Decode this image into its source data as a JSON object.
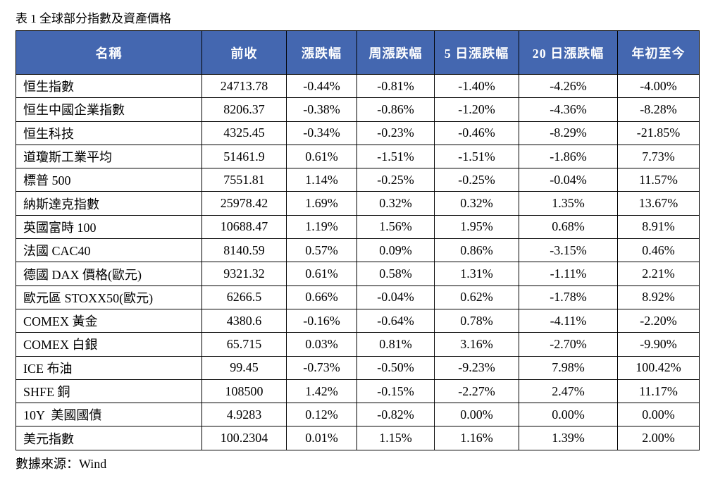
{
  "title": "表 1 全球部分指數及資產價格",
  "table": {
    "header": [
      "名稱",
      "前收",
      "漲跌幅",
      "周漲跌幅",
      "5 日漲跌幅",
      "20 日漲跌幅",
      "年初至今"
    ],
    "rows": [
      [
        "恒生指數",
        "24713.78",
        "-0.44%",
        "-0.81%",
        "-1.40%",
        "-4.26%",
        "-4.00%"
      ],
      [
        "恒生中國企業指數",
        "8206.37",
        "-0.38%",
        "-0.86%",
        "-1.20%",
        "-4.36%",
        "-8.28%"
      ],
      [
        "恒生科技",
        "4325.45",
        "-0.34%",
        "-0.23%",
        "-0.46%",
        "-8.29%",
        "-21.85%"
      ],
      [
        "道瓊斯工業平均",
        "51461.9",
        "0.61%",
        "-1.51%",
        "-1.51%",
        "-1.86%",
        "7.73%"
      ],
      [
        "標普 500",
        "7551.81",
        "1.14%",
        "-0.25%",
        "-0.25%",
        "-0.04%",
        "11.57%"
      ],
      [
        "納斯達克指數",
        "25978.42",
        "1.69%",
        "0.32%",
        "0.32%",
        "1.35%",
        "13.67%"
      ],
      [
        "英國富時 100",
        "10688.47",
        "1.19%",
        "1.56%",
        "1.95%",
        "0.68%",
        "8.91%"
      ],
      [
        "法國 CAC40",
        "8140.59",
        "0.57%",
        "0.09%",
        "0.86%",
        "-3.15%",
        "0.46%"
      ],
      [
        "德國 DAX 價格(歐元)",
        "9321.32",
        "0.61%",
        "0.58%",
        "1.31%",
        "-1.11%",
        "2.21%"
      ],
      [
        "歐元區 STOXX50(歐元)",
        "6266.5",
        "0.66%",
        "-0.04%",
        "0.62%",
        "-1.78%",
        "8.92%"
      ],
      [
        "COMEX 黃金",
        "4380.6",
        "-0.16%",
        "-0.64%",
        "0.78%",
        "-4.11%",
        "-2.20%"
      ],
      [
        "COMEX 白銀",
        "65.715",
        "0.03%",
        "0.81%",
        "3.16%",
        "-2.70%",
        "-9.90%"
      ],
      [
        "ICE 布油",
        "99.45",
        "-0.73%",
        "-0.50%",
        "-9.23%",
        "7.98%",
        "100.42%"
      ],
      [
        "SHFE 銅",
        "108500",
        "1.42%",
        "-0.15%",
        "-2.27%",
        "2.47%",
        "11.17%"
      ],
      [
        "10Y  美國國債",
        "4.9283",
        "0.12%",
        "-0.82%",
        "0.00%",
        "0.00%",
        "0.00%"
      ],
      [
        "美元指數",
        "100.2304",
        "0.01%",
        "1.15%",
        "1.16%",
        "1.39%",
        "2.00%"
      ]
    ]
  },
  "source": "數據來源：Wind"
}
